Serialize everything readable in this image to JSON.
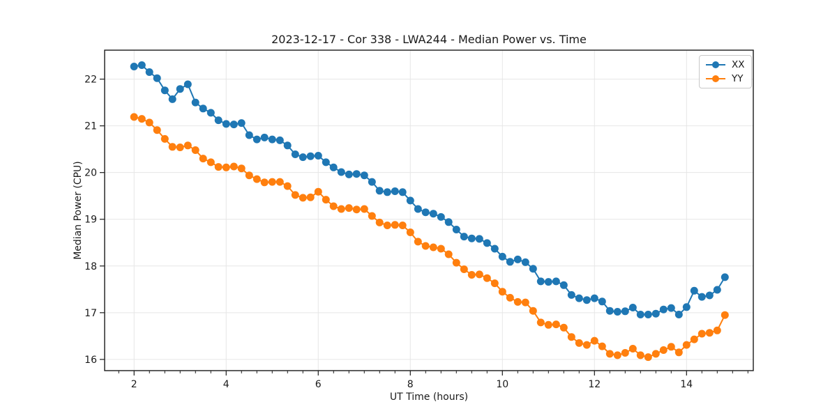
{
  "chart_data": {
    "type": "line",
    "title": "2023-12-17 - Cor 338 - LWA244 - Median Power vs. Time",
    "xlabel": "UT Time (hours)",
    "ylabel": "Median Power (CPU)",
    "xlim": [
      1.36,
      15.45
    ],
    "ylim": [
      15.76,
      22.62
    ],
    "x_ticks": [
      2,
      4,
      6,
      8,
      10,
      12,
      14
    ],
    "y_ticks": [
      16,
      17,
      18,
      19,
      20,
      21,
      22
    ],
    "x_minor_step": 0.333,
    "grid": true,
    "grid_color": "#e6e6e6",
    "spine_color": "#1a1a1a",
    "legend_position": "upper right",
    "marker": "o",
    "x": [
      2.0,
      2.167,
      2.333,
      2.5,
      2.667,
      2.833,
      3.0,
      3.167,
      3.333,
      3.5,
      3.667,
      3.833,
      4.0,
      4.167,
      4.333,
      4.5,
      4.667,
      4.833,
      5.0,
      5.167,
      5.333,
      5.5,
      5.667,
      5.833,
      6.0,
      6.167,
      6.333,
      6.5,
      6.667,
      6.833,
      7.0,
      7.167,
      7.333,
      7.5,
      7.667,
      7.833,
      8.0,
      8.167,
      8.333,
      8.5,
      8.667,
      8.833,
      9.0,
      9.167,
      9.333,
      9.5,
      9.667,
      9.833,
      10.0,
      10.167,
      10.333,
      10.5,
      10.667,
      10.833,
      11.0,
      11.167,
      11.333,
      11.5,
      11.667,
      11.833,
      12.0,
      12.167,
      12.333,
      12.5,
      12.667,
      12.833,
      13.0,
      13.167,
      13.333,
      13.5,
      13.667,
      13.833,
      14.0,
      14.167,
      14.333,
      14.5,
      14.667,
      14.833
    ],
    "series": [
      {
        "name": "XX",
        "color": "#1f77b4",
        "values": [
          22.27,
          22.3,
          22.15,
          22.02,
          21.76,
          21.57,
          21.79,
          21.89,
          21.5,
          21.37,
          21.28,
          21.12,
          21.04,
          21.03,
          21.06,
          20.8,
          20.71,
          20.75,
          20.71,
          20.69,
          20.58,
          20.39,
          20.33,
          20.35,
          20.36,
          20.22,
          20.11,
          20.01,
          19.96,
          19.97,
          19.94,
          19.8,
          19.61,
          19.58,
          19.6,
          19.58,
          19.4,
          19.22,
          19.15,
          19.12,
          19.05,
          18.94,
          18.78,
          18.63,
          18.59,
          18.58,
          18.49,
          18.37,
          18.2,
          18.09,
          18.14,
          18.08,
          17.94,
          17.67,
          17.66,
          17.67,
          17.59,
          17.38,
          17.31,
          17.27,
          17.31,
          17.24,
          17.04,
          17.02,
          17.03,
          17.11,
          16.96,
          16.96,
          16.98,
          17.07,
          17.1,
          16.96,
          17.12,
          17.47,
          17.34,
          17.37,
          17.49,
          17.76
        ]
      },
      {
        "name": "YY",
        "color": "#ff7f0e",
        "values": [
          21.19,
          21.15,
          21.07,
          20.91,
          20.72,
          20.55,
          20.54,
          20.58,
          20.48,
          20.3,
          20.22,
          20.12,
          20.11,
          20.13,
          20.09,
          19.94,
          19.86,
          19.79,
          19.8,
          19.8,
          19.71,
          19.52,
          19.46,
          19.47,
          19.59,
          19.42,
          19.28,
          19.22,
          19.24,
          19.21,
          19.22,
          19.07,
          18.93,
          18.87,
          18.88,
          18.87,
          18.72,
          18.52,
          18.43,
          18.4,
          18.37,
          18.25,
          18.07,
          17.93,
          17.81,
          17.82,
          17.74,
          17.63,
          17.45,
          17.32,
          17.23,
          17.22,
          17.04,
          16.79,
          16.74,
          16.75,
          16.68,
          16.48,
          16.35,
          16.31,
          16.4,
          16.28,
          16.12,
          16.09,
          16.14,
          16.23,
          16.09,
          16.05,
          16.12,
          16.2,
          16.27,
          16.15,
          16.31,
          16.43,
          16.55,
          16.57,
          16.62,
          16.95
        ]
      }
    ]
  }
}
